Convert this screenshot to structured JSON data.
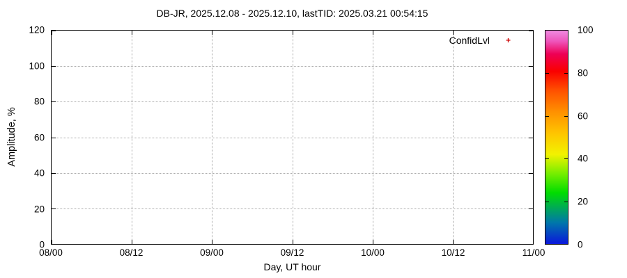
{
  "chart_data": {
    "type": "scatter",
    "title": "DB-JR, 2025.12.08 - 2025.12.10, lastTID: 2025.03.21 00:54:15",
    "xlabel": "Day, UT hour",
    "ylabel": "Amplitude, %",
    "x_ticks": [
      "08/00",
      "08/12",
      "09/00",
      "09/12",
      "10/00",
      "10/12",
      "11/00"
    ],
    "y_ticks": [
      0,
      20,
      40,
      60,
      80,
      100,
      120
    ],
    "ylim": [
      0,
      120
    ],
    "grid": true,
    "legend": {
      "position": "top-right-inside",
      "entries": [
        {
          "label": "ConfidLvl",
          "marker": "plus",
          "color": "#cc0000"
        }
      ]
    },
    "series": [
      {
        "name": "ConfidLvl",
        "points": []
      }
    ],
    "colorbar": {
      "range": [
        0,
        100
      ],
      "ticks": [
        0,
        20,
        40,
        60,
        80,
        100
      ],
      "gradient_stops": [
        {
          "at": 0,
          "color": "#0a16dc"
        },
        {
          "at": 10,
          "color": "#0077aa"
        },
        {
          "at": 17,
          "color": "#00aa55"
        },
        {
          "at": 24,
          "color": "#00dd00"
        },
        {
          "at": 33,
          "color": "#77ee00"
        },
        {
          "at": 42,
          "color": "#f2f200"
        },
        {
          "at": 52,
          "color": "#ffc400"
        },
        {
          "at": 62,
          "color": "#ff9000"
        },
        {
          "at": 72,
          "color": "#ff5000"
        },
        {
          "at": 81,
          "color": "#fa0000"
        },
        {
          "at": 89,
          "color": "#ee0055"
        },
        {
          "at": 95,
          "color": "#ee55bb"
        },
        {
          "at": 100,
          "color": "#ef8ae0"
        }
      ]
    },
    "colors": {
      "grid": "#a8a8a8",
      "border": "#000000",
      "background": "#ffffff",
      "text": "#000000"
    }
  }
}
